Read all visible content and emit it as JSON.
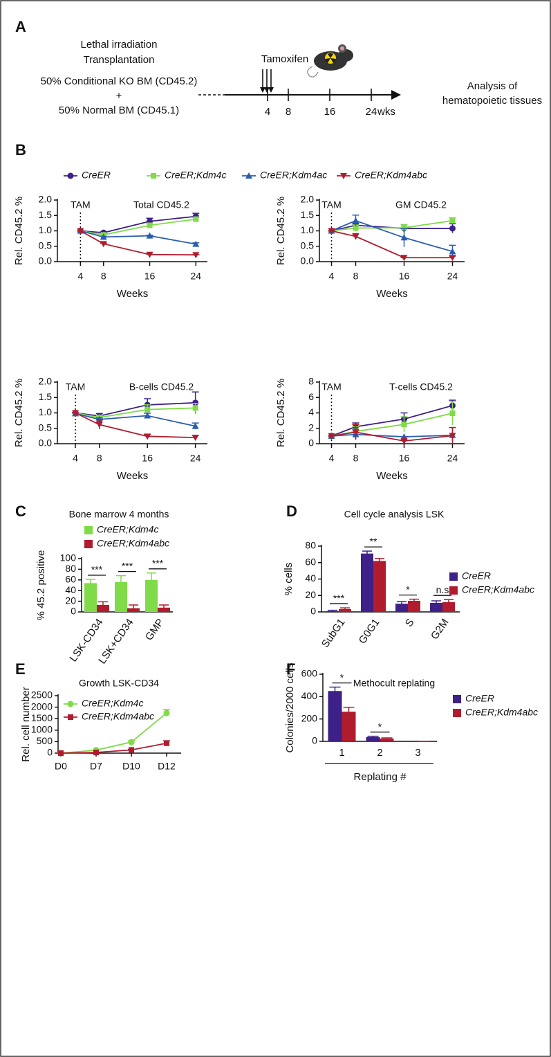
{
  "panel_a": {
    "label": "A",
    "left_text": [
      "Lethal irradiation",
      "Transplantation",
      "50% Conditional KO BM (CD45.2)",
      "+",
      "50% Normal BM (CD45.1)"
    ],
    "treatment": "Tamoxifen",
    "timeline_ticks": [
      4,
      8,
      16,
      24
    ],
    "timeline_unit": "wks",
    "right_text": [
      "Analysis of",
      "hematopoietic tissues"
    ]
  },
  "chart_data": [
    {
      "type": "line",
      "panel": "B",
      "title": "Total CD45.2",
      "annotation": {
        "text": "TAM",
        "x": 4
      },
      "xlabel": "Weeks",
      "ylabel": "Rel. CD45.2 %",
      "x": [
        4,
        8,
        16,
        24
      ],
      "xlim": [
        0,
        26
      ],
      "xticks": [
        4,
        8,
        16,
        24
      ],
      "ylim": [
        0,
        2
      ],
      "yticks": [
        {
          "value": 0,
          "label": "0.0"
        },
        {
          "value": 0.5,
          "label": "0.5"
        },
        {
          "value": 1,
          "label": "1.0"
        },
        {
          "value": 1.5,
          "label": "1.5"
        },
        {
          "value": 2,
          "label": "2.0"
        }
      ],
      "series": [
        {
          "name": "CreER",
          "color": "#3d2188",
          "marker": "circle",
          "values": [
            1.0,
            0.94,
            1.31,
            1.47
          ],
          "errors": [
            0,
            0.03,
            0.1,
            0.1
          ]
        },
        {
          "name": "CreER;Kdm4c",
          "color": "#7fdb47",
          "marker": "square",
          "values": [
            1.0,
            0.87,
            1.18,
            1.38
          ],
          "errors": [
            0,
            0.03,
            0.07,
            0.05
          ]
        },
        {
          "name": "CreER;Kdm4ac",
          "color": "#2a5db0",
          "marker": "triangle-up",
          "values": [
            1.0,
            0.8,
            0.84,
            0.57
          ],
          "errors": [
            0,
            0.02,
            0.02,
            0.04
          ]
        },
        {
          "name": "CreER;Kdm4abc",
          "color": "#b01c2e",
          "marker": "triangle-down",
          "values": [
            1.0,
            0.58,
            0.23,
            0.22
          ],
          "errors": [
            0,
            0.02,
            0.01,
            0.01
          ]
        }
      ]
    },
    {
      "type": "line",
      "title": "GM CD45.2",
      "annotation": {
        "text": "TAM",
        "x": 4
      },
      "xlabel": "Weeks",
      "ylabel": "Rel. CD45.2 %",
      "x": [
        4,
        8,
        16,
        24
      ],
      "xlim": [
        2,
        26
      ],
      "xticks": [
        4,
        8,
        16,
        24
      ],
      "ylim": [
        0,
        2
      ],
      "yticks": [
        {
          "value": 0,
          "label": "0.0"
        },
        {
          "value": 0.5,
          "label": "0.5"
        },
        {
          "value": 1,
          "label": "1.0"
        },
        {
          "value": 1.5,
          "label": "1.5"
        },
        {
          "value": 2,
          "label": "2.0"
        }
      ],
      "series": [
        {
          "color": "#3d2188",
          "marker": "circle",
          "values": [
            1.0,
            1.18,
            1.08,
            1.08
          ],
          "errors": [
            0,
            0.05,
            0.12,
            0.15
          ]
        },
        {
          "color": "#7fdb47",
          "marker": "square",
          "values": [
            1.0,
            1.09,
            1.1,
            1.33
          ],
          "errors": [
            0,
            0.1,
            0.1,
            0.09
          ]
        },
        {
          "color": "#2a5db0",
          "marker": "triangle-up",
          "values": [
            1.0,
            1.33,
            0.78,
            0.33
          ],
          "errors": [
            0,
            0.18,
            0.3,
            0.2
          ]
        },
        {
          "color": "#b01c2e",
          "marker": "triangle-down",
          "values": [
            1.0,
            0.82,
            0.13,
            0.13
          ],
          "errors": [
            0,
            0.09,
            0,
            0.05
          ]
        }
      ]
    },
    {
      "type": "line",
      "title": "B-cells CD45.2",
      "annotation": {
        "text": "TAM",
        "x": 4
      },
      "xlabel": "Weeks",
      "ylabel": "Rel. CD45.2 %",
      "x": [
        4,
        8,
        16,
        24
      ],
      "xlim": [
        1,
        26
      ],
      "xticks": [
        4,
        8,
        16,
        24
      ],
      "ylim": [
        0,
        2
      ],
      "yticks": [
        {
          "value": 0,
          "label": "0.0"
        },
        {
          "value": 0.5,
          "label": "0.5"
        },
        {
          "value": 1,
          "label": "1.0"
        },
        {
          "value": 1.5,
          "label": "1.5"
        },
        {
          "value": 2,
          "label": "2.0"
        }
      ],
      "series": [
        {
          "color": "#3d2188",
          "marker": "circle",
          "values": [
            1.0,
            0.9,
            1.26,
            1.33
          ],
          "errors": [
            0,
            0.08,
            0.2,
            0.35
          ]
        },
        {
          "color": "#7fdb47",
          "marker": "square",
          "values": [
            1.0,
            0.85,
            1.11,
            1.16
          ],
          "errors": [
            0,
            0.06,
            0.15,
            0.15
          ]
        },
        {
          "color": "#2a5db0",
          "marker": "triangle-up",
          "values": [
            0.98,
            0.79,
            0.91,
            0.57
          ],
          "errors": [
            0.03,
            0.05,
            0.08,
            0.1
          ]
        },
        {
          "color": "#b01c2e",
          "marker": "triangle-down",
          "values": [
            1.0,
            0.62,
            0.24,
            0.2
          ],
          "errors": [
            0,
            0.15,
            0.06,
            0.07
          ]
        }
      ]
    },
    {
      "type": "line",
      "title": "T-cells CD45.2",
      "annotation": {
        "text": "TAM",
        "x": 4
      },
      "xlabel": "Weeks",
      "ylabel": "Rel. CD45.2 %",
      "x": [
        4,
        8,
        16,
        24
      ],
      "xlim": [
        2,
        26
      ],
      "xticks": [
        4,
        8,
        16,
        24
      ],
      "ylim": [
        0,
        8
      ],
      "yticks": [
        0,
        2,
        4,
        6,
        8
      ],
      "series": [
        {
          "color": "#3d2188",
          "marker": "circle",
          "values": [
            1.0,
            2.2,
            3.2,
            4.95
          ],
          "errors": [
            0,
            0.5,
            0.8,
            0.7
          ]
        },
        {
          "color": "#7fdb47",
          "marker": "square",
          "values": [
            1.0,
            1.6,
            2.5,
            3.95
          ],
          "errors": [
            0,
            0.6,
            1.0,
            1.5
          ]
        },
        {
          "color": "#2a5db0",
          "marker": "triangle-up",
          "values": [
            1.0,
            1.2,
            0.9,
            1.1
          ],
          "errors": [
            0,
            0.6,
            0,
            1.0
          ]
        },
        {
          "color": "#b01c2e",
          "marker": "triangle-down",
          "values": [
            1.0,
            1.5,
            0.35,
            1.05
          ],
          "errors": [
            0,
            1.0,
            0.1,
            1.05
          ]
        }
      ]
    },
    {
      "type": "bar",
      "panel": "C",
      "title": "Bone marrow 4 months",
      "ylabel": "% 45.2 positive",
      "categories": [
        "LSK-CD34",
        "LSK+CD34",
        "GMP"
      ],
      "ylim": [
        0,
        100
      ],
      "yticks": [
        0,
        20,
        40,
        60,
        80,
        100
      ],
      "legend": "top-left",
      "series": [
        {
          "name": "CreER;Kdm4c",
          "color": "#7fdb47",
          "values": [
            54,
            56,
            60
          ],
          "errors": [
            7,
            12,
            13
          ]
        },
        {
          "name": "CreER;Kdm4abc",
          "color": "#b01c2e",
          "values": [
            13,
            7,
            8
          ],
          "errors": [
            6,
            6,
            5
          ]
        }
      ],
      "significance": [
        "***",
        "***",
        "***"
      ]
    },
    {
      "type": "bar",
      "panel": "D",
      "title": "Cell cycle analysis LSK",
      "ylabel": "% cells",
      "categories": [
        "SubG1",
        "G0G1",
        "S",
        "G2M"
      ],
      "ylim": [
        0,
        80
      ],
      "yticks": [
        0,
        20,
        40,
        60,
        80
      ],
      "legend": "right",
      "series": [
        {
          "name": "CreER",
          "color": "#3d2188",
          "values": [
            1,
            71,
            10,
            11
          ],
          "errors": [
            1,
            3,
            2.5,
            2.5
          ]
        },
        {
          "name": "CreER;Kdm4abc",
          "color": "#b01c2e",
          "values": [
            3.5,
            62,
            13.5,
            12
          ],
          "errors": [
            1.5,
            3,
            2,
            3
          ]
        }
      ],
      "significance": [
        "***",
        "**",
        "*",
        "n.s"
      ]
    },
    {
      "type": "line",
      "panel": "E",
      "title": "Growth LSK-CD34",
      "ylabel": "Rel. cell number",
      "categories": [
        "D0",
        "D7",
        "D10",
        "D12"
      ],
      "ylim": [
        0,
        2500
      ],
      "yticks": [
        0,
        500,
        1000,
        1500,
        2000,
        2500
      ],
      "legend": "top-left",
      "series": [
        {
          "name": "CreER;Kdm4c",
          "color": "#7fdb47",
          "marker": "circle",
          "values": [
            0,
            130,
            480,
            1750
          ],
          "errors": [
            0,
            0,
            50,
            150
          ]
        },
        {
          "name": "CreER;Kdm4abc",
          "color": "#b01c2e",
          "marker": "square",
          "values": [
            0,
            30,
            140,
            430
          ],
          "errors": [
            0,
            0,
            20,
            110
          ]
        }
      ]
    },
    {
      "type": "bar",
      "panel": "F",
      "title": "Methocult replating",
      "ylabel": "Colonies/2000 cells",
      "xlabel": "Replating #",
      "categories": [
        "1",
        "2",
        "3"
      ],
      "ylim": [
        0,
        600
      ],
      "yticks": [
        0,
        200,
        400,
        600
      ],
      "legend": "right",
      "series": [
        {
          "name": "CreER",
          "color": "#3d2188",
          "values": [
            450,
            38,
            0
          ],
          "errors": [
            35,
            8,
            0
          ]
        },
        {
          "name": "CreER;Kdm4abc",
          "color": "#b01c2e",
          "values": [
            265,
            25,
            0
          ],
          "errors": [
            40,
            6,
            0
          ]
        }
      ],
      "significance": [
        "*",
        "*",
        null
      ]
    }
  ]
}
